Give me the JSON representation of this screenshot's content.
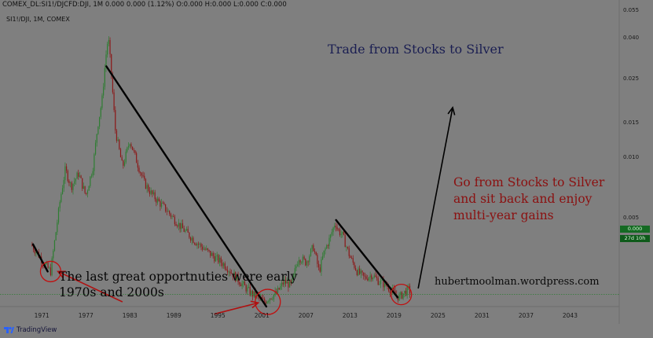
{
  "header": {
    "symbol_line": "COMEX_DL:SI1!/DJCFD:DJI, 1M 0.000 0.000 (1.12%) O:0.000 H:0.000 L:0.000 C:0.000",
    "sub_line": "SI1!/DJI, 1M, COMEX"
  },
  "annotations": {
    "title": "Trade from Stocks to Silver",
    "right_note": "Go from Stocks to Silver\nand sit back and enjoy\nmulti-year gains",
    "left_note": "The last great opportnuties were early\n1970s and 2000s",
    "website": "hubertmoolman.wordpress.com"
  },
  "price_badges": {
    "last": "0.000",
    "countdown": "27d 10h"
  },
  "footer": {
    "brand": "TradingView"
  },
  "colors": {
    "background": "#7f7f7f",
    "up_candle": "#2e7d32",
    "down_candle": "#8b1a1a",
    "trendline": "#000000",
    "arrow_red": "#b01010",
    "circle_red": "#c01010",
    "baseline": "#2e7d32"
  },
  "chart_data": {
    "type": "line",
    "title": "",
    "xlabel": "",
    "ylabel": "",
    "scale": "log",
    "x_ticks": [
      "1971",
      "1977",
      "1983",
      "1989",
      "1995",
      "2001",
      "2007",
      "2013",
      "2019",
      "2025",
      "2031",
      "2037",
      "2043"
    ],
    "y_ticks": [
      "0.055",
      "0.040",
      "0.025",
      "0.015",
      "0.010",
      "0.005"
    ],
    "xlim": [
      1965.3,
      2049.7
    ],
    "ylim": [
      0.0018,
      0.055
    ],
    "grid": false,
    "series": [
      {
        "x": [
          1969.5,
          1970.5,
          1971.5,
          1972.2,
          1973.0,
          1973.5,
          1974.2,
          1975.0,
          1976.0,
          1977.0,
          1978.0,
          1978.6,
          1979.2,
          1979.7,
          1980.05,
          1980.5,
          1981.0,
          1982.0,
          1983.0,
          1984.0,
          1985.0,
          1986.0,
          1987.0,
          1988.0,
          1990.0,
          1992.0,
          1994.0,
          1996.0,
          1998.0,
          1999.5,
          2000.5,
          2001.3,
          2002.0,
          2003.0,
          2004.0,
          2005.0,
          2006.0,
          2007.0,
          2008.0,
          2008.8,
          2009.5,
          2010.3,
          2011.0,
          2011.3,
          2012.0,
          2013.0,
          2014.0,
          2015.0,
          2016.0,
          2017.0,
          2018.0,
          2019.0,
          2019.7,
          2020.3,
          2021.0,
          2021.3
        ],
        "y": [
          0.0037,
          0.0033,
          0.0029,
          0.0027,
          0.0045,
          0.0062,
          0.0088,
          0.0072,
          0.0084,
          0.0065,
          0.0092,
          0.0145,
          0.0195,
          0.032,
          0.041,
          0.026,
          0.014,
          0.009,
          0.0123,
          0.0095,
          0.0075,
          0.0066,
          0.006,
          0.0055,
          0.0045,
          0.0038,
          0.0033,
          0.0029,
          0.0024,
          0.0021,
          0.002,
          0.0019,
          0.002,
          0.0021,
          0.0024,
          0.0023,
          0.0032,
          0.003,
          0.0036,
          0.0027,
          0.0034,
          0.004,
          0.0048,
          0.0044,
          0.0041,
          0.0032,
          0.0027,
          0.0025,
          0.0026,
          0.0024,
          0.0023,
          0.0021,
          0.002,
          0.0021,
          0.0022,
          0.0021
        ]
      }
    ],
    "trendlines": [
      {
        "from": [
          1969.8,
          0.0037
        ],
        "to": [
          1971.8,
          0.0027
        ]
      },
      {
        "from": [
          1979.8,
          0.029
        ],
        "to": [
          2001.6,
          0.0018
        ]
      },
      {
        "from": [
          2011.1,
          0.0049
        ],
        "to": [
          2019.5,
          0.002
        ]
      }
    ],
    "baseline_value": 0.00207,
    "circles": [
      {
        "x": 1972.2,
        "y": 0.0027
      },
      {
        "x": 2001.8,
        "y": 0.0019
      },
      {
        "x": 2020.0,
        "y": 0.00207
      }
    ],
    "arrows": [
      {
        "color": "red",
        "from": [
          1982.0,
          0.0019
        ],
        "to": [
          1973.2,
          0.0027
        ]
      },
      {
        "color": "red",
        "from": [
          1994.5,
          0.00165
        ],
        "to": [
          2000.5,
          0.00188
        ]
      },
      {
        "color": "black",
        "from": [
          2022.3,
          0.00222
        ],
        "to": [
          2027.0,
          0.018
        ]
      }
    ]
  }
}
